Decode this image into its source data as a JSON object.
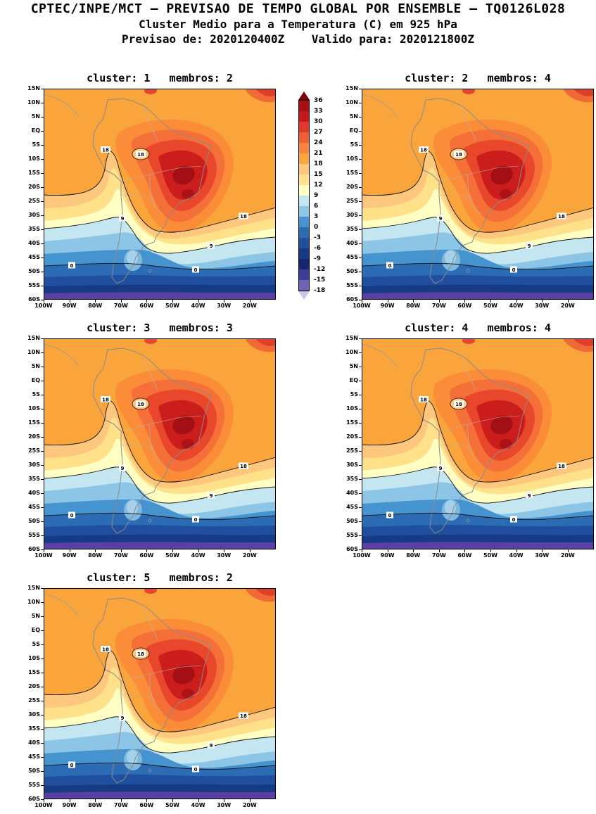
{
  "header": {
    "line1": "CPTEC/INPE/MCT — PREVISAO DE TEMPO GLOBAL POR ENSEMBLE — TQ0126L028",
    "line2": "Cluster Medio para a Temperatura (C) em 925 hPa",
    "line3": "Previsao de: 2020120400Z    Valido para: 2020121800Z"
  },
  "panels": [
    {
      "title": "cluster: 1   membros: 2",
      "cluster": 1,
      "membros": 2
    },
    {
      "title": "cluster: 2   membros: 4",
      "cluster": 2,
      "membros": 4
    },
    {
      "title": "cluster: 3   membros: 3",
      "cluster": 3,
      "membros": 3
    },
    {
      "title": "cluster: 4   membros: 4",
      "cluster": 4,
      "membros": 4
    },
    {
      "title": "cluster: 5   membros: 2",
      "cluster": 5,
      "membros": 2
    }
  ],
  "axes": {
    "lat_ticks": [
      "15N",
      "10N",
      "5N",
      "EQ",
      "5S",
      "10S",
      "15S",
      "20S",
      "25S",
      "30S",
      "35S",
      "40S",
      "45S",
      "50S",
      "55S",
      "60S"
    ],
    "lon_ticks": [
      "100W",
      "90W",
      "80W",
      "70W",
      "60W",
      "50W",
      "40W",
      "30W",
      "20W"
    ]
  },
  "contour_labels": {
    "c18": "18",
    "c9": "9",
    "c0": "0"
  },
  "colorbar": {
    "levels": [
      "36",
      "33",
      "30",
      "27",
      "24",
      "21",
      "18",
      "15",
      "12",
      "9",
      "6",
      "3",
      "0",
      "-3",
      "-6",
      "-9",
      "-12",
      "-15",
      "-18"
    ],
    "segment_colors": [
      "#a50f15",
      "#c5161d",
      "#e0392a",
      "#ef5f36",
      "#f8873c",
      "#faa53c",
      "#fdc87e",
      "#ffe18a",
      "#ffffc4",
      "#c3e6f0",
      "#8cc5e5",
      "#4694cf",
      "#2b6cb5",
      "#1f4f9e",
      "#173a85",
      "#16276f",
      "#3d3d9c",
      "#7161b5"
    ],
    "arrow_top_color": "#7a000f",
    "arrow_bottom_color": "#cfc2ea"
  },
  "chart_data": {
    "type": "heatmap",
    "subtype": "ensemble cluster-mean filled contour maps over South America",
    "title": "CPTEC/INPE/MCT — PREVISAO DE TEMPO GLOBAL POR ENSEMBLE — TQ0126L028",
    "subtitle": "Cluster Medio para a Temperatura (C) em 925 hPa",
    "forecast_init": "2020120400Z",
    "forecast_valid": "2020121800Z",
    "variable": "Temperatura",
    "units": "C",
    "level_hPa": 925,
    "panels": [
      {
        "cluster": 1,
        "membros": 2
      },
      {
        "cluster": 2,
        "membros": 4
      },
      {
        "cluster": 3,
        "membros": 3
      },
      {
        "cluster": 4,
        "membros": 4
      },
      {
        "cluster": 5,
        "membros": 2
      }
    ],
    "x": {
      "label": "longitude",
      "ticks": [
        "100W",
        "90W",
        "80W",
        "70W",
        "60W",
        "50W",
        "40W",
        "30W",
        "20W"
      ]
    },
    "y": {
      "label": "latitude",
      "ticks": [
        "15N",
        "10N",
        "5N",
        "EQ",
        "5S",
        "10S",
        "15S",
        "20S",
        "25S",
        "30S",
        "35S",
        "40S",
        "45S",
        "50S",
        "55S",
        "60S"
      ]
    },
    "contour_interval": 3,
    "contour_levels": [
      36,
      33,
      30,
      27,
      24,
      21,
      18,
      15,
      12,
      9,
      6,
      3,
      0,
      -3,
      -6,
      -9,
      -12,
      -15,
      -18
    ],
    "labeled_contours": [
      18,
      9,
      0
    ],
    "field_description": "Warm core (27-36C) over central Brazil, cool tongue along Andes, temperatures decreasing southward to below -12C near 60S",
    "legend_position": "vertical colorbar between panel 1 and panel 2",
    "grid": false
  }
}
